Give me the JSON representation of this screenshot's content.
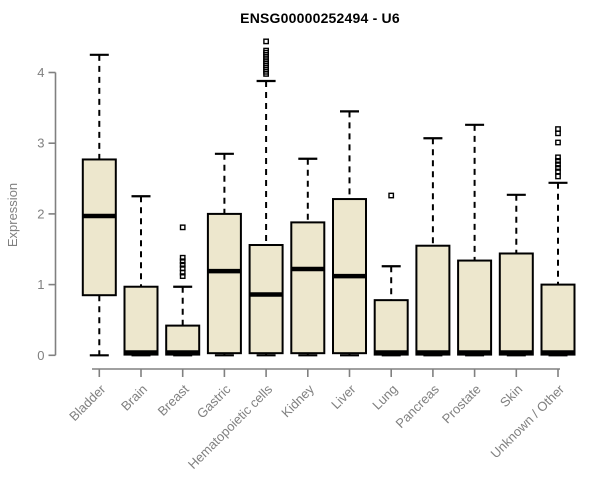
{
  "chart_data": {
    "type": "boxplot",
    "title": "ENSG00000252494 - U6",
    "ylabel": "Expression",
    "xlabel": "",
    "ylim": [
      0,
      4.45
    ],
    "y_ticks": [
      0,
      1,
      2,
      3,
      4
    ],
    "grid": false,
    "legend": null,
    "colors": {
      "box_fill": "#EDE7CD",
      "box_stroke": "#000000",
      "median": "#000000",
      "whisker": "#000000",
      "axis": "#808080",
      "tick_label": "#808080",
      "title": "#000000",
      "background": "#ffffff"
    },
    "categories": [
      "Bladder",
      "Brain",
      "Breast",
      "Gastric",
      "Hematopoietic cells",
      "Kidney",
      "Liver",
      "Lung",
      "Pancreas",
      "Prostate",
      "Skin",
      "Unknown / Other"
    ],
    "series": [
      {
        "category": "Bladder",
        "whisker_low": 0,
        "q1": 0.85,
        "median": 1.97,
        "q3": 2.77,
        "whisker_high": 4.25,
        "outliers": []
      },
      {
        "category": "Brain",
        "whisker_low": 0,
        "q1": 0.01,
        "median": 0.04,
        "q3": 0.97,
        "whisker_high": 2.25,
        "outliers": []
      },
      {
        "category": "Breast",
        "whisker_low": 0,
        "q1": 0.01,
        "median": 0.04,
        "q3": 0.42,
        "whisker_high": 0.97,
        "outliers": [
          1.81,
          1.38,
          1.33,
          1.28,
          1.23,
          1.17,
          1.12
        ]
      },
      {
        "category": "Gastric",
        "whisker_low": 0,
        "q1": 0.03,
        "median": 1.19,
        "q3": 2.0,
        "whisker_high": 2.85,
        "outliers": []
      },
      {
        "category": "Hematopoietic cells",
        "whisker_low": 0,
        "q1": 0.03,
        "median": 0.86,
        "q3": 1.56,
        "whisker_high": 3.88,
        "outliers": [
          4.44,
          4.31,
          4.28,
          4.25,
          4.22,
          4.19,
          4.16,
          4.13,
          4.1,
          4.07,
          4.04,
          4.01,
          3.98
        ]
      },
      {
        "category": "Kidney",
        "whisker_low": 0,
        "q1": 0.03,
        "median": 1.22,
        "q3": 1.88,
        "whisker_high": 2.78,
        "outliers": []
      },
      {
        "category": "Liver",
        "whisker_low": 0,
        "q1": 0.03,
        "median": 1.12,
        "q3": 2.21,
        "whisker_high": 3.45,
        "outliers": []
      },
      {
        "category": "Lung",
        "whisker_low": 0,
        "q1": 0.01,
        "median": 0.04,
        "q3": 0.78,
        "whisker_high": 1.26,
        "outliers": [
          2.26
        ]
      },
      {
        "category": "Pancreas",
        "whisker_low": 0,
        "q1": 0.01,
        "median": 0.04,
        "q3": 1.55,
        "whisker_high": 3.07,
        "outliers": []
      },
      {
        "category": "Prostate",
        "whisker_low": 0,
        "q1": 0.01,
        "median": 0.04,
        "q3": 1.34,
        "whisker_high": 3.26,
        "outliers": []
      },
      {
        "category": "Skin",
        "whisker_low": 0,
        "q1": 0.01,
        "median": 0.04,
        "q3": 1.44,
        "whisker_high": 2.27,
        "outliers": []
      },
      {
        "category": "Unknown / Other",
        "whisker_low": 0,
        "q1": 0.01,
        "median": 0.04,
        "q3": 1.0,
        "whisker_high": 2.44,
        "outliers": [
          3.2,
          3.14,
          3.01,
          2.8,
          2.75,
          2.7,
          2.65,
          2.6,
          2.53
        ]
      }
    ]
  }
}
